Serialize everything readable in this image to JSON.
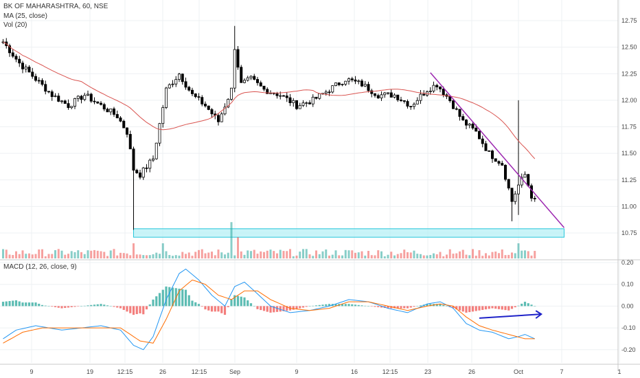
{
  "header": {
    "symbol_line": "BK OF MAHARASHTRA, 60, NSE",
    "ma_label": "MA (25, close)",
    "vol_label": "Vol (20)",
    "macd_label": "MACD (12, 26, close, 9)"
  },
  "colors": {
    "up": "#ffffff",
    "down": "#000000",
    "wick": "#000000",
    "ma": "#d9534f",
    "trendline": "#9c27b0",
    "arrow": "#1e22c8",
    "support_fill": "#b2f0f5",
    "support_stroke": "#26c6da",
    "vol_up": "#26a69a",
    "vol_down": "#ef5350",
    "macd_line": "#2196f3",
    "signal_line": "#ff6d00",
    "hist_pos": "#26a69a",
    "hist_neg": "#ef5350"
  },
  "chart_data": [
    {
      "type": "candlestick",
      "title": "BK OF MAHARASHTRA, 60, NSE",
      "ylim": [
        10.6,
        12.85
      ],
      "y_ticks": [
        "12.75",
        "12.50",
        "12.25",
        "12.00",
        "11.75",
        "11.50",
        "11.25",
        "11.00",
        "10.75"
      ],
      "x_ticks": [
        "9",
        "19",
        "12:15",
        "26",
        "12:15",
        "Sep",
        "9",
        "16",
        "12:15",
        "23",
        "26",
        "Oct",
        "7",
        "1"
      ],
      "close_anchors": [
        {
          "x": 0,
          "y": 12.55
        },
        {
          "x": 5,
          "y": 12.35
        },
        {
          "x": 10,
          "y": 12.2
        },
        {
          "x": 15,
          "y": 12.05
        },
        {
          "x": 20,
          "y": 11.95
        },
        {
          "x": 25,
          "y": 12.05
        },
        {
          "x": 30,
          "y": 11.95
        },
        {
          "x": 35,
          "y": 11.85
        },
        {
          "x": 38,
          "y": 11.7
        },
        {
          "x": 40,
          "y": 11.35
        },
        {
          "x": 42,
          "y": 11.3
        },
        {
          "x": 46,
          "y": 11.45
        },
        {
          "x": 50,
          "y": 12.1
        },
        {
          "x": 54,
          "y": 12.25
        },
        {
          "x": 58,
          "y": 12.05
        },
        {
          "x": 62,
          "y": 11.95
        },
        {
          "x": 66,
          "y": 11.8
        },
        {
          "x": 70,
          "y": 12.1
        },
        {
          "x": 71,
          "y": 12.5
        },
        {
          "x": 73,
          "y": 12.15
        },
        {
          "x": 76,
          "y": 12.2
        },
        {
          "x": 80,
          "y": 12.1
        },
        {
          "x": 85,
          "y": 12.05
        },
        {
          "x": 90,
          "y": 11.95
        },
        {
          "x": 95,
          "y": 12.0
        },
        {
          "x": 100,
          "y": 12.1
        },
        {
          "x": 105,
          "y": 12.2
        },
        {
          "x": 110,
          "y": 12.15
        },
        {
          "x": 115,
          "y": 12.05
        },
        {
          "x": 120,
          "y": 12.05
        },
        {
          "x": 125,
          "y": 11.95
        },
        {
          "x": 130,
          "y": 12.1
        },
        {
          "x": 133,
          "y": 12.15
        },
        {
          "x": 137,
          "y": 12.0
        },
        {
          "x": 141,
          "y": 11.8
        },
        {
          "x": 145,
          "y": 11.7
        },
        {
          "x": 149,
          "y": 11.5
        },
        {
          "x": 153,
          "y": 11.4
        },
        {
          "x": 156,
          "y": 11.05
        },
        {
          "x": 158,
          "y": 11.2
        },
        {
          "x": 160,
          "y": 11.3
        },
        {
          "x": 162,
          "y": 11.1
        },
        {
          "x": 163,
          "y": 11.05
        }
      ],
      "moving_average": {
        "name": "MA (25, close)",
        "period": 25
      },
      "trendline": [
        {
          "x": 131,
          "y": 12.26
        },
        {
          "x": 172,
          "y": 10.8
        }
      ],
      "support_zone": {
        "x_from": 40,
        "x_to": 172,
        "y_from": 10.71,
        "y_to": 10.79
      }
    },
    {
      "type": "bar",
      "title": "Vol (20)",
      "note": "volume histogram; notable spikes",
      "spikes": [
        {
          "x": 40,
          "value": 1.0
        },
        {
          "x": 49,
          "value": 1.0
        },
        {
          "x": 70,
          "value": 2.4
        },
        {
          "x": 72,
          "value": 1.4
        },
        {
          "x": 158,
          "value": 1.0
        }
      ],
      "baseline_value": 0.35
    },
    {
      "type": "line",
      "title": "MACD (12, 26, close, 9)",
      "ylim": [
        -0.24,
        0.21
      ],
      "y_ticks": [
        "0.20",
        "0.10",
        "0.00",
        "-0.10",
        "-0.20"
      ],
      "series": [
        {
          "name": "MACD",
          "anchors": [
            {
              "x": 0,
              "y": -0.15
            },
            {
              "x": 4,
              "y": -0.11
            },
            {
              "x": 10,
              "y": -0.09
            },
            {
              "x": 18,
              "y": -0.11
            },
            {
              "x": 24,
              "y": -0.1
            },
            {
              "x": 30,
              "y": -0.09
            },
            {
              "x": 36,
              "y": -0.11
            },
            {
              "x": 40,
              "y": -0.18
            },
            {
              "x": 43,
              "y": -0.2
            },
            {
              "x": 46,
              "y": -0.14
            },
            {
              "x": 50,
              "y": 0.03
            },
            {
              "x": 54,
              "y": 0.15
            },
            {
              "x": 56,
              "y": 0.17
            },
            {
              "x": 60,
              "y": 0.12
            },
            {
              "x": 64,
              "y": 0.05
            },
            {
              "x": 68,
              "y": 0.0
            },
            {
              "x": 71,
              "y": 0.09
            },
            {
              "x": 74,
              "y": 0.11
            },
            {
              "x": 77,
              "y": 0.07
            },
            {
              "x": 82,
              "y": 0.0
            },
            {
              "x": 88,
              "y": -0.03
            },
            {
              "x": 94,
              "y": -0.02
            },
            {
              "x": 100,
              "y": 0.0
            },
            {
              "x": 106,
              "y": 0.03
            },
            {
              "x": 112,
              "y": 0.02
            },
            {
              "x": 118,
              "y": -0.01
            },
            {
              "x": 124,
              "y": -0.03
            },
            {
              "x": 130,
              "y": 0.01
            },
            {
              "x": 134,
              "y": 0.02
            },
            {
              "x": 138,
              "y": -0.01
            },
            {
              "x": 142,
              "y": -0.08
            },
            {
              "x": 146,
              "y": -0.11
            },
            {
              "x": 150,
              "y": -0.12
            },
            {
              "x": 155,
              "y": -0.15
            },
            {
              "x": 158,
              "y": -0.14
            },
            {
              "x": 160,
              "y": -0.13
            },
            {
              "x": 163,
              "y": -0.15
            }
          ]
        },
        {
          "name": "Signal",
          "anchors": [
            {
              "x": 0,
              "y": -0.17
            },
            {
              "x": 6,
              "y": -0.12
            },
            {
              "x": 12,
              "y": -0.1
            },
            {
              "x": 20,
              "y": -0.1
            },
            {
              "x": 28,
              "y": -0.1
            },
            {
              "x": 36,
              "y": -0.1
            },
            {
              "x": 42,
              "y": -0.16
            },
            {
              "x": 46,
              "y": -0.17
            },
            {
              "x": 50,
              "y": -0.06
            },
            {
              "x": 54,
              "y": 0.07
            },
            {
              "x": 58,
              "y": 0.12
            },
            {
              "x": 62,
              "y": 0.1
            },
            {
              "x": 66,
              "y": 0.05
            },
            {
              "x": 70,
              "y": 0.03
            },
            {
              "x": 74,
              "y": 0.07
            },
            {
              "x": 78,
              "y": 0.07
            },
            {
              "x": 82,
              "y": 0.03
            },
            {
              "x": 88,
              "y": -0.01
            },
            {
              "x": 94,
              "y": -0.02
            },
            {
              "x": 100,
              "y": -0.01
            },
            {
              "x": 106,
              "y": 0.02
            },
            {
              "x": 112,
              "y": 0.02
            },
            {
              "x": 118,
              "y": 0.0
            },
            {
              "x": 124,
              "y": -0.02
            },
            {
              "x": 130,
              "y": 0.0
            },
            {
              "x": 134,
              "y": 0.01
            },
            {
              "x": 138,
              "y": 0.0
            },
            {
              "x": 142,
              "y": -0.05
            },
            {
              "x": 146,
              "y": -0.09
            },
            {
              "x": 150,
              "y": -0.11
            },
            {
              "x": 155,
              "y": -0.13
            },
            {
              "x": 160,
              "y": -0.15
            },
            {
              "x": 163,
              "y": -0.15
            }
          ]
        }
      ],
      "arrow": [
        {
          "x": 146,
          "y": -0.055
        },
        {
          "x": 165,
          "y": -0.037
        }
      ]
    }
  ]
}
